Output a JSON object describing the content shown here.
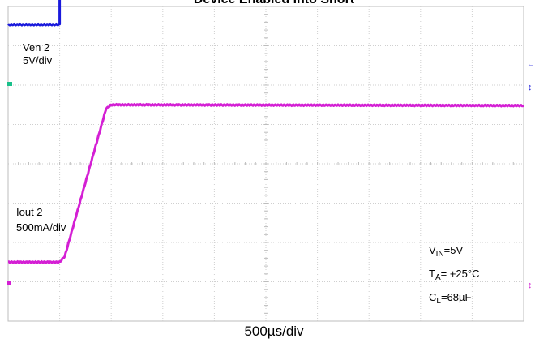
{
  "title": "Device Enabled into Short",
  "chart_data": {
    "type": "line",
    "timebase": "500µs/div",
    "grid": true,
    "x_divisions": 10,
    "y_divisions": 8,
    "series": [
      {
        "name": "Ven 2",
        "scale": "5V/div",
        "color": "#1a1adc",
        "points": [
          [
            0,
            3.54
          ],
          [
            1,
            3.54
          ],
          [
            1,
            4.33
          ],
          [
            10,
            4.33
          ]
        ]
      },
      {
        "name": "Iout 2",
        "scale": "500mA/div",
        "color": "#d41fd4",
        "points": [
          [
            0,
            -2.5
          ],
          [
            1.0,
            -2.5
          ],
          [
            1.1,
            -2.35
          ],
          [
            1.9,
            1.4
          ],
          [
            2.0,
            1.5
          ],
          [
            10,
            1.48
          ]
        ]
      }
    ],
    "annotations": {
      "vin": {
        "main": "V",
        "sub": "IN",
        "rest": "=5V"
      },
      "ta": {
        "main": "T",
        "sub": "A",
        "rest": "= +25°C"
      },
      "cl": {
        "main": "C",
        "sub": "L",
        "rest": "=68µF"
      }
    }
  }
}
